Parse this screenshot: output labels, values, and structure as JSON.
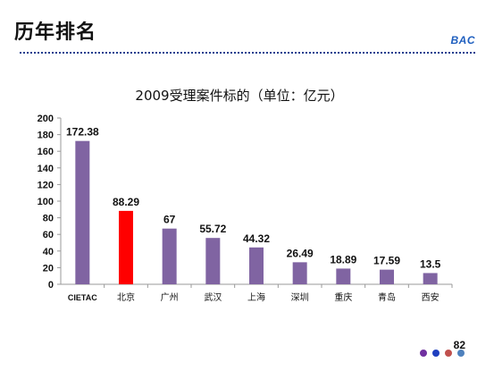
{
  "slide": {
    "title": "历年排名",
    "brand": "BAC",
    "page_number": "82"
  },
  "colors": {
    "bar_default": "#8064a2",
    "bar_highlight": "#ff0000",
    "title_divider": "#1f3f8f",
    "brand": "#1f5fbf",
    "nav_dots": [
      "#7030a0",
      "#1f3fbf",
      "#c0504d",
      "#4f81bd"
    ]
  },
  "chart_data": {
    "type": "bar",
    "title": "2009受理案件标的（单位：亿元）",
    "xlabel": "",
    "ylabel": "",
    "categories": [
      "CIETAC",
      "北京",
      "广州",
      "武汉",
      "上海",
      "深圳",
      "重庆",
      "青岛",
      "西安"
    ],
    "values": [
      172.38,
      88.29,
      67,
      55.72,
      44.32,
      26.49,
      18.89,
      17.59,
      13.5
    ],
    "value_labels": [
      "172.38",
      "88.29",
      "67",
      "55.72",
      "44.32",
      "26.49",
      "18.89",
      "17.59",
      "13.5"
    ],
    "highlight_category": "北京",
    "ylim": [
      0,
      200
    ],
    "yticks": [
      0,
      20,
      40,
      60,
      80,
      100,
      120,
      140,
      160,
      180,
      200
    ],
    "grid": false,
    "legend": "none"
  }
}
